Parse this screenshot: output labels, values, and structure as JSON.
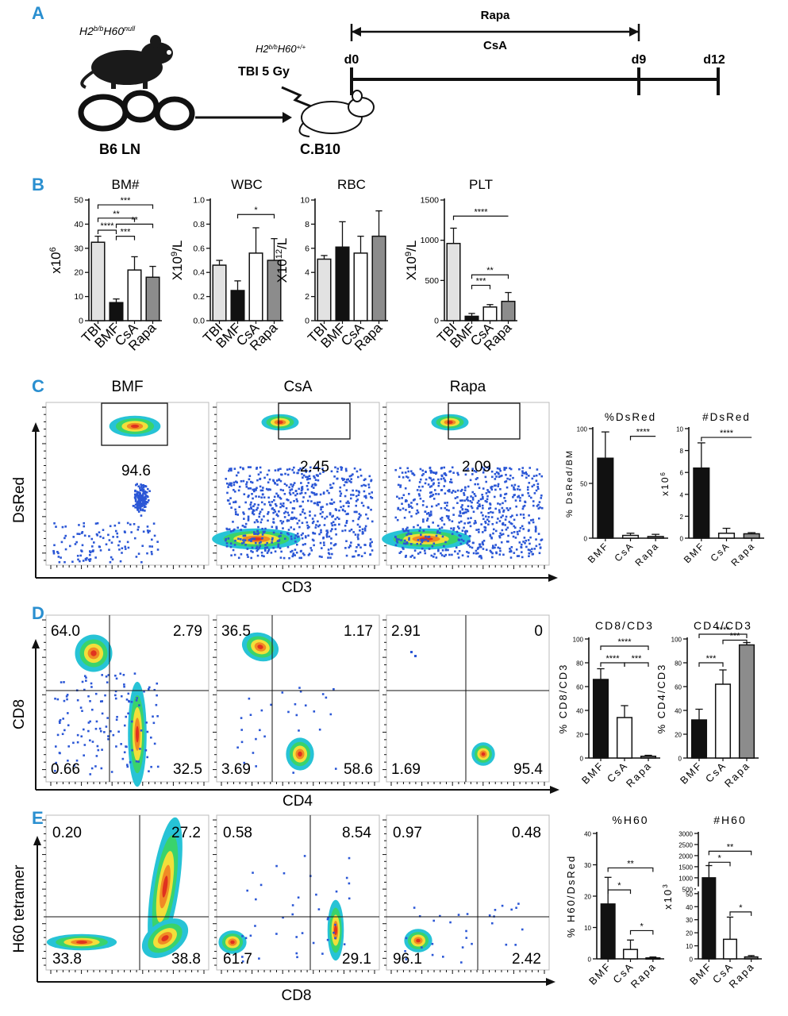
{
  "colors": {
    "panel_label": "#2a8fd0",
    "bar_tbi": "#e2e2e2",
    "bar_bmf": "#111111",
    "bar_csa": "#ffffff",
    "bar_rapa": "#8c8c8c",
    "dot_blue": "#2b57d6"
  },
  "panel_a": {
    "label": "A",
    "donor_genotype_base": "H2",
    "donor_genotype_sup": "b/b",
    "donor_genotype_h": "H60",
    "donor_genotype_h_sup": "null",
    "donor": "B6 LN",
    "recipient_genotype_base": "H2",
    "recipient_genotype_sup": "b/b",
    "recipient_genotype_h": "H60",
    "recipient_genotype_h_sup": "+/+",
    "recipient": "C.B10",
    "tbi": "TBI 5 Gy",
    "drug1": "Rapa",
    "drug2": "CsA",
    "day0": "d0",
    "day9": "d9",
    "day12": "d12"
  },
  "panel_b": {
    "label": "B",
    "chart_data": [
      {
        "type": "bar",
        "title": "BM#",
        "ylabel_base": "x10",
        "ylabel_sup": "6",
        "ylabel_tail": "",
        "ylim": [
          0,
          50
        ],
        "ticks": [
          "0",
          "10",
          "20",
          "30",
          "40",
          "50"
        ],
        "categories": [
          "TBI",
          "BMF",
          "CsA",
          "Rapa"
        ],
        "values": [
          32.5,
          7.5,
          21,
          18
        ],
        "errors": [
          2.5,
          1.5,
          5.5,
          4.5
        ],
        "sig": [
          "***",
          "****",
          "**",
          "***",
          "**"
        ]
      },
      {
        "type": "bar",
        "title": "WBC",
        "ylabel_base": "X10",
        "ylabel_sup": "9",
        "ylabel_tail": "/L",
        "ylim": [
          0,
          1.0
        ],
        "ticks": [
          "0.0",
          "0.2",
          "0.4",
          "0.6",
          "0.8",
          "1.0"
        ],
        "categories": [
          "TBI",
          "BMF",
          "CsA",
          "Rapa"
        ],
        "values": [
          0.46,
          0.25,
          0.56,
          0.5
        ],
        "errors": [
          0.04,
          0.08,
          0.21,
          0.18
        ],
        "sig": [
          "*"
        ]
      },
      {
        "type": "bar",
        "title": "RBC",
        "ylabel_base": "X10",
        "ylabel_sup": "12",
        "ylabel_tail": "/L",
        "ylim": [
          0,
          10
        ],
        "ticks": [
          "0",
          "2",
          "4",
          "6",
          "8",
          "10"
        ],
        "categories": [
          "TBI",
          "BMF",
          "CsA",
          "Rapa"
        ],
        "values": [
          5.1,
          6.1,
          5.6,
          7.0
        ],
        "errors": [
          0.3,
          2.1,
          1.4,
          2.1
        ],
        "sig": []
      },
      {
        "type": "bar",
        "title": "PLT",
        "ylabel_base": "X10",
        "ylabel_sup": "9",
        "ylabel_tail": "/L",
        "ylim": [
          0,
          1500
        ],
        "ticks": [
          "0",
          "500",
          "1000",
          "1500"
        ],
        "categories": [
          "TBI",
          "BMF",
          "CsA",
          "Rapa"
        ],
        "values": [
          960,
          55,
          170,
          240
        ],
        "errors": [
          190,
          35,
          30,
          110
        ],
        "sig": [
          "****",
          "***",
          "**"
        ]
      }
    ]
  },
  "panel_c": {
    "label": "C",
    "flow_titles": [
      "BMF",
      "CsA",
      "Rapa"
    ],
    "flow_values": [
      "94.6",
      "2.45",
      "2.09"
    ],
    "y_axis": "DsRed",
    "x_axis": "CD3",
    "chart_data": [
      {
        "type": "bar",
        "title": "%DsRed",
        "ylabel": "% DsRed/BM",
        "ylim": [
          0,
          100
        ],
        "ticks": [
          "0",
          "50",
          "100"
        ],
        "categories": [
          "BMF",
          "CsA",
          "Rapa"
        ],
        "values": [
          73,
          2.5,
          1.5
        ],
        "errors": [
          24,
          2,
          2
        ],
        "sig": [
          "****"
        ]
      },
      {
        "type": "bar",
        "title": "#DsRed",
        "ylabel": "x10",
        "ylabel_sup": "6",
        "ylim": [
          0,
          10
        ],
        "ticks": [
          "0",
          "2",
          "4",
          "6",
          "8",
          "10"
        ],
        "categories": [
          "BMF",
          "CsA",
          "Rapa"
        ],
        "values": [
          6.4,
          0.45,
          0.4
        ],
        "errors": [
          2.3,
          0.45,
          0.1
        ],
        "sig": [
          "****"
        ]
      }
    ]
  },
  "panel_d": {
    "label": "D",
    "y_axis": "CD8",
    "x_axis": "CD4",
    "quadrants": [
      {
        "ul": "64.0",
        "ur": "2.79",
        "ll": "0.66",
        "lr": "32.5"
      },
      {
        "ul": "36.5",
        "ur": "1.17",
        "ll": "3.69",
        "lr": "58.6"
      },
      {
        "ul": "2.91",
        "ur": "0",
        "ll": "1.69",
        "lr": "95.4"
      }
    ],
    "chart_data": [
      {
        "type": "bar",
        "title": "CD8/CD3",
        "ylabel": "% CD8/CD3",
        "ylim": [
          0,
          100
        ],
        "ticks": [
          "0",
          "20",
          "40",
          "60",
          "80",
          "100"
        ],
        "categories": [
          "BMF",
          "CsA",
          "Rapa"
        ],
        "values": [
          66,
          34,
          1.5
        ],
        "errors": [
          9,
          10,
          0.8
        ],
        "sig": [
          "****",
          "****",
          "***"
        ]
      },
      {
        "type": "bar",
        "title": "CD4/CD3",
        "ylabel": "% CD4/CD3",
        "ylim": [
          0,
          100
        ],
        "ticks": [
          "0",
          "20",
          "40",
          "60",
          "80",
          "100"
        ],
        "categories": [
          "BMF",
          "CsA",
          "Rapa"
        ],
        "values": [
          32,
          62,
          95
        ],
        "errors": [
          9,
          12,
          2
        ],
        "sig": [
          "****",
          "***",
          "***"
        ]
      }
    ]
  },
  "panel_e": {
    "label": "E",
    "y_axis": "H60 tetramer",
    "x_axis": "CD8",
    "quadrants": [
      {
        "ul": "0.20",
        "ur": "27.2",
        "ll": "33.8",
        "lr": "38.8"
      },
      {
        "ul": "0.58",
        "ur": "8.54",
        "ll": "61.7",
        "lr": "29.1"
      },
      {
        "ul": "0.97",
        "ur": "0.48",
        "ll": "96.1",
        "lr": "2.42"
      }
    ],
    "chart_data": [
      {
        "type": "bar",
        "title": "%H60",
        "ylabel": "% H60/DsRed",
        "ylim": [
          0,
          40
        ],
        "ticks": [
          "0",
          "10",
          "20",
          "30",
          "40"
        ],
        "categories": [
          "BMF",
          "CsA",
          "Rapa"
        ],
        "values": [
          17.5,
          3,
          0.3
        ],
        "errors": [
          8.5,
          3,
          0.3
        ],
        "sig": [
          "**",
          "*",
          "*"
        ]
      },
      {
        "type": "bar",
        "title": "#H60",
        "ylabel": "x10",
        "ylabel_sup": "3",
        "y_axis_break": [
          50,
          500
        ],
        "ticks": [
          "0",
          "10",
          "20",
          "30",
          "40",
          "50",
          "500",
          "1000",
          "1500",
          "2000",
          "2500",
          "3000"
        ],
        "categories": [
          "BMF",
          "CsA",
          "Rapa"
        ],
        "values": [
          1000,
          15,
          1.5
        ],
        "errors": [
          550,
          17,
          1
        ],
        "sig": [
          "**",
          "*",
          "*"
        ]
      }
    ]
  }
}
